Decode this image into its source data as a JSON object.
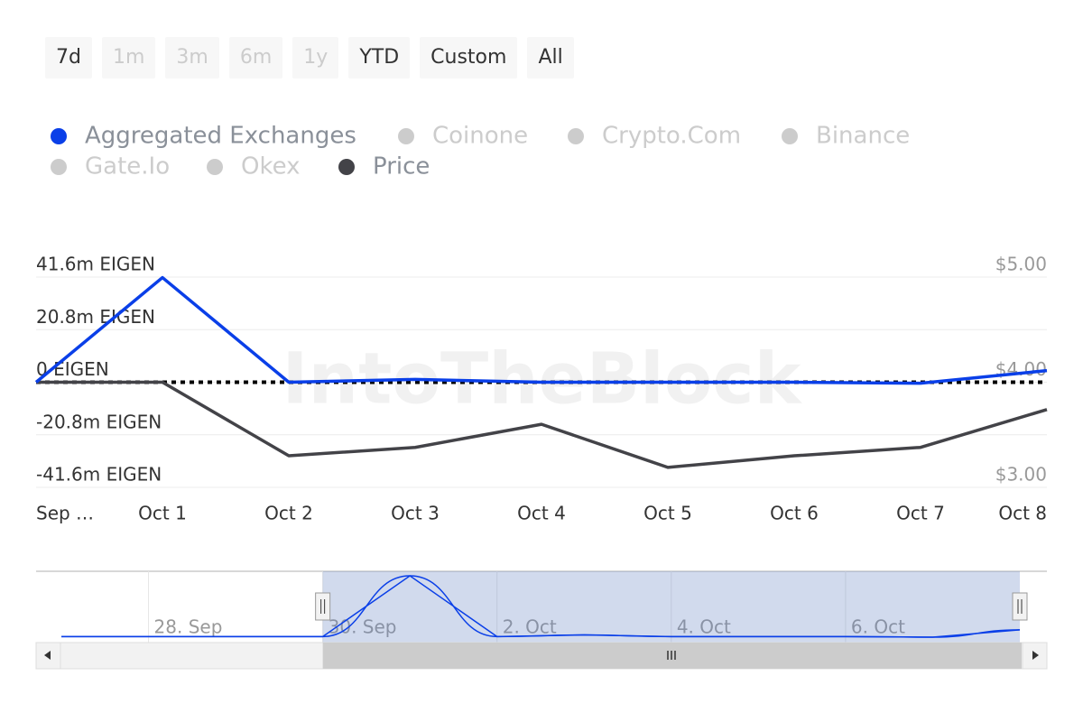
{
  "range_buttons": [
    {
      "label": "7d",
      "enabled": true
    },
    {
      "label": "1m",
      "enabled": false
    },
    {
      "label": "3m",
      "enabled": false
    },
    {
      "label": "6m",
      "enabled": false
    },
    {
      "label": "1y",
      "enabled": false
    },
    {
      "label": "YTD",
      "enabled": true
    },
    {
      "label": "Custom",
      "enabled": true
    },
    {
      "label": "All",
      "enabled": true
    }
  ],
  "chart_data": {
    "type": "line",
    "watermark": "IntoTheBlock",
    "categories": [
      "Sep …",
      "Oct 1",
      "Oct 2",
      "Oct 3",
      "Oct 4",
      "Oct 5",
      "Oct 6",
      "Oct 7",
      "Oct 8"
    ],
    "series": [
      {
        "name": "Aggregated Exchanges",
        "color": "#0a3fe8",
        "visible": true,
        "values": [
          0,
          41.4,
          0,
          1.1,
          0,
          0,
          0,
          -0.4,
          4.6
        ]
      },
      {
        "name": "Coinone",
        "color": "#cccccc",
        "visible": false
      },
      {
        "name": "Crypto.Com",
        "color": "#cccccc",
        "visible": false
      },
      {
        "name": "Binance",
        "color": "#cccccc",
        "visible": false
      },
      {
        "name": "Gate.Io",
        "color": "#cccccc",
        "visible": false
      },
      {
        "name": "Okex",
        "color": "#cccccc",
        "visible": false
      },
      {
        "name": "Price",
        "color": "#434348",
        "visible": true,
        "axis": "y2",
        "values": [
          4.0,
          4.0,
          3.3,
          3.38,
          3.6,
          3.19,
          3.3,
          3.38,
          3.74
        ]
      }
    ],
    "ylim": [
      -41.6,
      41.6
    ],
    "yticks": [
      {
        "value": -41.6,
        "label": "-41.6m EIGEN"
      },
      {
        "value": -20.8,
        "label": "-20.8m EIGEN"
      },
      {
        "value": 0,
        "label": "0 EIGEN"
      },
      {
        "value": 20.8,
        "label": "20.8m EIGEN"
      },
      {
        "value": 41.6,
        "label": "41.6m EIGEN"
      }
    ],
    "y2lim": [
      3,
      5
    ],
    "y2ticks": [
      {
        "value": 3,
        "label": "$3.00"
      },
      {
        "value": 4,
        "label": "$4.00"
      },
      {
        "value": 5,
        "label": "$5.00"
      }
    ],
    "grid": true,
    "navigator": {
      "labels": [
        null,
        "28. Sep",
        null,
        "30. Sep",
        null,
        "2. Oct",
        null,
        "4. Oct",
        null,
        "6. Oct",
        null,
        null
      ],
      "values": [
        0,
        0,
        0,
        0,
        41.4,
        0,
        1.1,
        0,
        0,
        0,
        -0.4,
        4.6
      ],
      "color": "#0a3fe8"
    }
  }
}
